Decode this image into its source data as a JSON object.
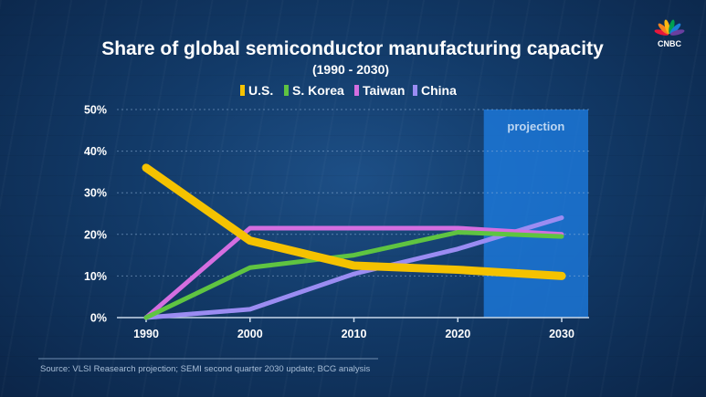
{
  "chart_data": {
    "type": "line",
    "title": "Share of global semiconductor manufacturing capacity",
    "subtitle": "(1990 - 2030)",
    "x": [
      1990,
      2000,
      2010,
      2020,
      2030
    ],
    "x_tick_labels": [
      "1990",
      "2000",
      "2010",
      "2020",
      "2030"
    ],
    "y_tick_labels": [
      "0%",
      "10%",
      "20%",
      "30%",
      "40%",
      "50%"
    ],
    "ylim": [
      0,
      50
    ],
    "y_ticks": [
      0,
      10,
      20,
      30,
      40,
      50
    ],
    "grid": true,
    "legend_placement": "top",
    "series": [
      {
        "name": "U.S.",
        "color": "#f5c200",
        "values": [
          36,
          18.5,
          12.5,
          11.5,
          10
        ]
      },
      {
        "name": "S. Korea",
        "color": "#5fc441",
        "values": [
          0,
          12,
          15,
          20.5,
          19.5
        ]
      },
      {
        "name": "Taiwan",
        "color": "#d46ee0",
        "values": [
          0,
          21.5,
          21.5,
          21.5,
          20
        ]
      },
      {
        "name": "China",
        "color": "#9b8cf2",
        "values": [
          0,
          2,
          10.5,
          16.5,
          24
        ]
      }
    ],
    "projection": {
      "label": "projection",
      "x_start": 2022.5,
      "x_end": 2030,
      "color": "#1e7fe6"
    },
    "source": "Source: VLSI Reasearch projection; SEMI second quarter 2030 update; BCG analysis"
  },
  "brand": {
    "logo": "CNBC",
    "icon": "peacock-icon",
    "colors": [
      "#e8173b",
      "#f58220",
      "#fcb711",
      "#00a04f",
      "#1a7ed6",
      "#6a3fa0"
    ]
  }
}
